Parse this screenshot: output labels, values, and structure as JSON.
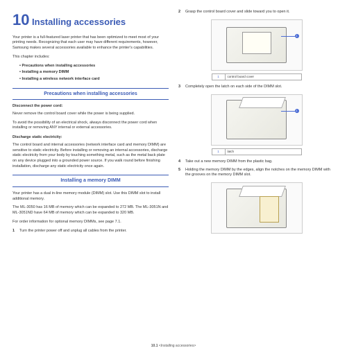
{
  "chapter": {
    "number": "10",
    "title": "Installing accessories"
  },
  "intro": "Your printer is a full-featured laser printer that has been optimized to meet most of your printing needs. Recognizing that each user may have different requirements, however, Samsung makes several accessories available to enhance the printer's capabilities.",
  "includes_label": "This chapter includes:",
  "bullets": {
    "b1": "Precautions when installing accessories",
    "b2": "Installing a memory DIMM",
    "b3": "Installing a wireless network interface card"
  },
  "section1": {
    "header": "Precautions when installing accessories",
    "sub1": "Disconnect the power cord:",
    "p1": "Never remove the control board cover while the power is being supplied.",
    "p2": "To avoid the possibility of an electrical shock, always disconnect the power cord when installing or removing ANY internal or external accessories.",
    "sub2": "Discharge static electricity:",
    "p3": "The control board and internal accessories (network interface card and memory DIMM) are sensitive to static electricity. Before installing or removing an internal accessories, discharge static electricity from your body by touching something metal, such as the metal back plate on any device plugged into a grounded power source. If you walk round before finishing installation, discharge any static electricity once again."
  },
  "section2": {
    "header": "Installing a memory DIMM",
    "p1": "Your printer has a dual in-line memory module (DIMM) slot. Use this DIMM slot to install additional memory.",
    "p2": "The ML-3050 has 16 MB of memory which can be expanded to 272 MB. The ML-3051N and ML-3051ND have 64 MB of memory which can be expanded to 320 MB.",
    "p3": "For order information for optional memory DIMMs, see page 7.1.",
    "step1_num": "1",
    "step1": "Turn the printer power off and unplug all cables from the printer."
  },
  "rightcol": {
    "step2_num": "2",
    "step2": "Grasp the control board cover and slide toward you to open it.",
    "cap1_num": "1",
    "cap1": "control board cover",
    "step3_num": "3",
    "step3": "Completely open the latch on each side of the DIMM slot.",
    "cap2_num": "1",
    "cap2": "latch",
    "step4_num": "4",
    "step4": "Take out a new memory DIMM from the plastic bag.",
    "step5_num": "5",
    "step5": "Holding the memory DIMM by the edges, align the notches on the memory DIMM with the grooves on the memory DIMM slot."
  },
  "footer": {
    "page": "10.1",
    "label": "<Installing accessories>"
  },
  "colors": {
    "primary": "#3b5bb5",
    "callout": "#4a6bd4"
  }
}
